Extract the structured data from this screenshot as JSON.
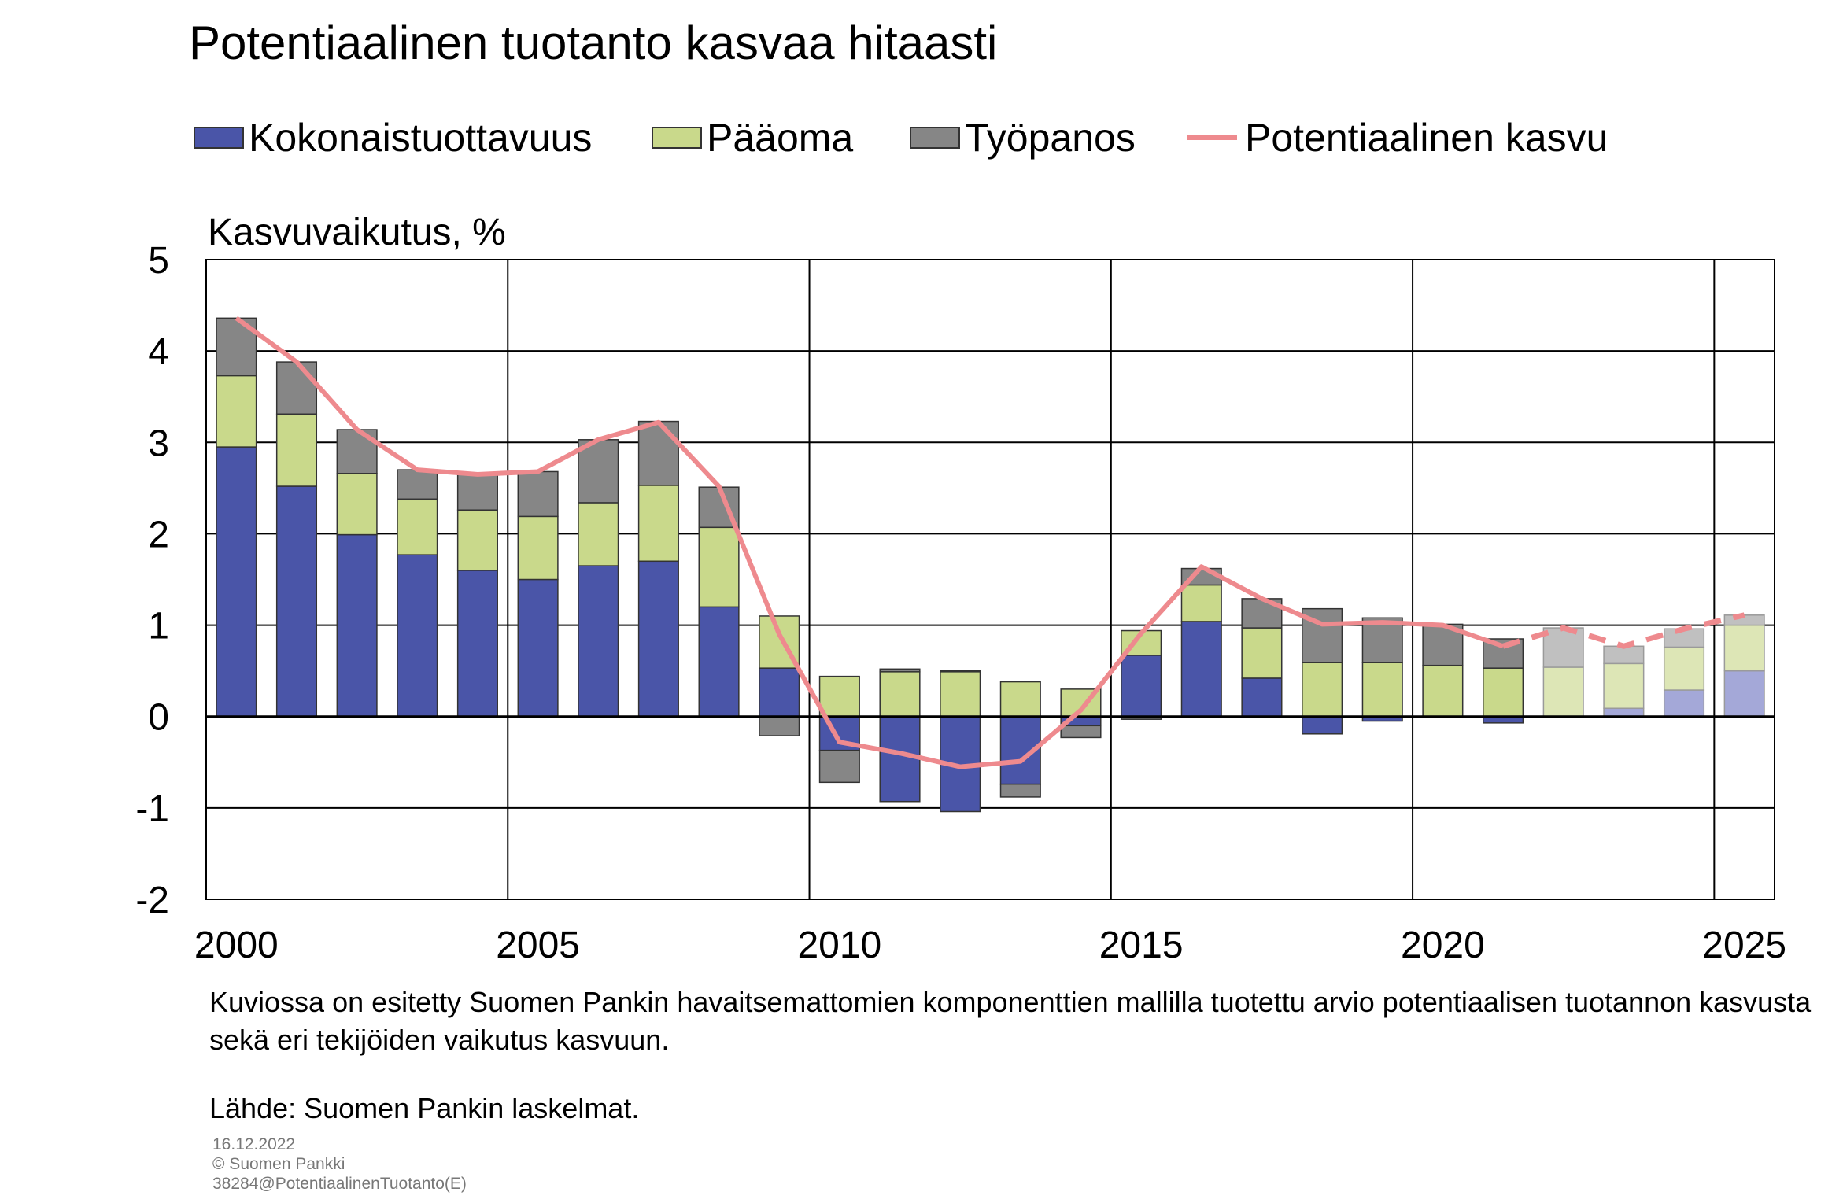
{
  "title": "Potentiaalinen tuotanto kasvaa hitaasti",
  "legend": [
    {
      "label": "Kokonaistuottavuus",
      "kind": "bar",
      "color": "#4a55a8"
    },
    {
      "label": "Pääoma",
      "kind": "bar",
      "color": "#c9d98b"
    },
    {
      "label": "Työpanos",
      "kind": "bar",
      "color": "#868686"
    },
    {
      "label": "Potentiaalinen kasvu",
      "kind": "line",
      "color": "#ee8a8e"
    }
  ],
  "ylabel": "Kasvuvaikutus, %",
  "note": "Kuviossa on esitetty Suomen Pankin havaitsemattomien komponenttien mallilla tuotettu arvio potentiaalisen tuotannon kasvusta sekä eri tekijöiden vaikutus kasvuun.",
  "source": "Lähde: Suomen Pankin laskelmat.",
  "meta": {
    "date": "16.12.2022",
    "copyright": "© Suomen Pankki",
    "code": "38284@PotentiaalinenTuotanto(E)"
  },
  "chart_data": {
    "type": "bar",
    "stacked": true,
    "title": "Potentiaalinen tuotanto kasvaa hitaasti",
    "ylabel": "Kasvuvaikutus, %",
    "ylim": [
      -2,
      5
    ],
    "yticks": [
      "5",
      "4",
      "3",
      "2",
      "1",
      "0",
      "-1",
      "-2"
    ],
    "xticks": [
      "2000",
      "2005",
      "2010",
      "2015",
      "2020",
      "2025"
    ],
    "grid": true,
    "legend_position": "top",
    "forecast_from": 2022,
    "categories": [
      2000,
      2001,
      2002,
      2003,
      2004,
      2005,
      2006,
      2007,
      2008,
      2009,
      2010,
      2011,
      2012,
      2013,
      2014,
      2015,
      2016,
      2017,
      2018,
      2019,
      2020,
      2021,
      2022,
      2023,
      2024,
      2025
    ],
    "series": [
      {
        "name": "Kokonaistuottavuus",
        "color": "#4a55a8",
        "forecast_color": "#a4a8d8",
        "values": [
          2.95,
          2.52,
          1.99,
          1.77,
          1.6,
          1.5,
          1.65,
          1.7,
          1.2,
          0.53,
          -0.37,
          -0.93,
          -1.04,
          -0.74,
          -0.1,
          0.67,
          1.04,
          0.42,
          -0.19,
          -0.05,
          -0.01,
          -0.07,
          0.0,
          0.09,
          0.29,
          0.5
        ]
      },
      {
        "name": "Pääoma",
        "color": "#c9d98b",
        "forecast_color": "#dde6b6",
        "values": [
          0.78,
          0.79,
          0.67,
          0.61,
          0.66,
          0.69,
          0.69,
          0.83,
          0.87,
          0.57,
          0.44,
          0.49,
          0.49,
          0.38,
          0.3,
          0.27,
          0.4,
          0.55,
          0.59,
          0.59,
          0.56,
          0.53,
          0.54,
          0.49,
          0.47,
          0.5
        ]
      },
      {
        "name": "Työpanos",
        "color": "#868686",
        "forecast_color": "#c0c0c0",
        "values": [
          0.63,
          0.57,
          0.48,
          0.32,
          0.39,
          0.49,
          0.69,
          0.7,
          0.44,
          -0.21,
          -0.35,
          0.03,
          0.01,
          -0.14,
          -0.13,
          -0.03,
          0.18,
          0.32,
          0.59,
          0.49,
          0.45,
          0.32,
          0.43,
          0.19,
          0.2,
          0.11
        ]
      }
    ],
    "line": {
      "name": "Potentiaalinen kasvu",
      "color": "#ee8a8e",
      "values": [
        4.36,
        3.88,
        3.14,
        2.7,
        2.65,
        2.68,
        3.03,
        3.22,
        2.52,
        0.9,
        -0.28,
        -0.4,
        -0.55,
        -0.49,
        0.07,
        0.91,
        1.64,
        1.29,
        1.01,
        1.03,
        1.0,
        0.77,
        0.97,
        0.77,
        0.96,
        1.11
      ]
    }
  }
}
